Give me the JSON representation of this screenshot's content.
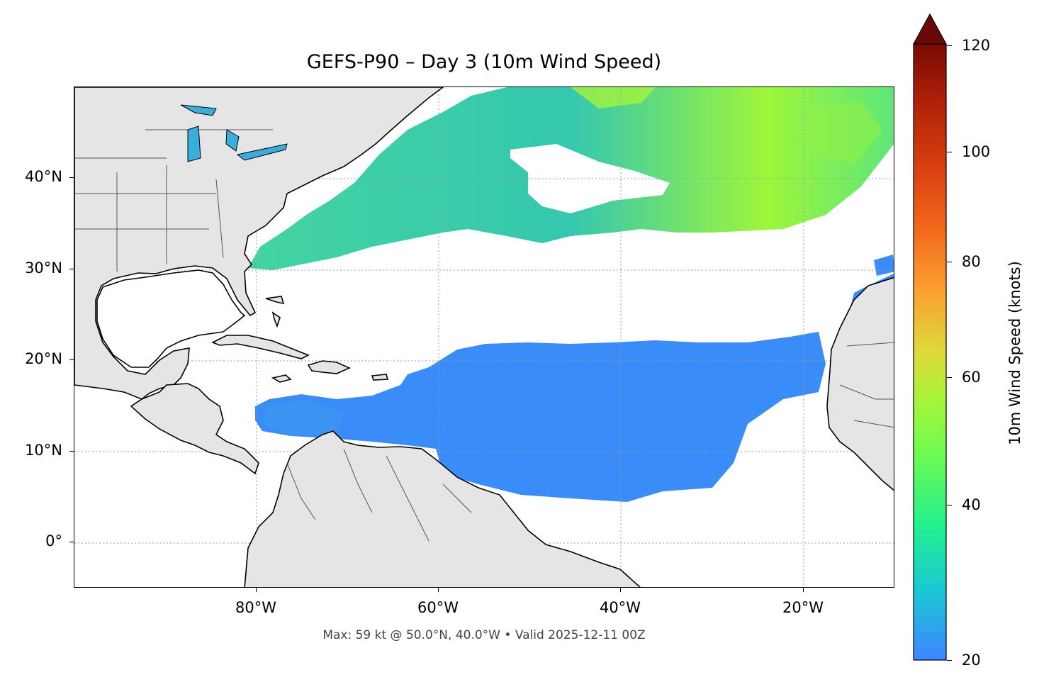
{
  "title": "GEFS-P90 – Day 3 (10m Wind Speed)",
  "footer": "Max: 59 kt @ 50.0°N, 40.0°W • Valid 2025-12-11 00Z",
  "latitude_labels": [
    "40°N",
    "30°N",
    "20°N",
    "10°N",
    "0°"
  ],
  "longitude_labels": [
    "80°W",
    "60°W",
    "40°W",
    "20°W"
  ],
  "colorbar": {
    "label": "10m Wind Speed (knots)",
    "ticks": [
      "120",
      "100",
      "80",
      "60",
      "40",
      "20"
    ],
    "range": [
      20,
      120
    ],
    "extend": "max",
    "colors": [
      "#3f85ff",
      "#1ac7d6",
      "#23f08e",
      "#9ef63a",
      "#dfd93a",
      "#fba032",
      "#f2681b",
      "#c8300a",
      "#951105",
      "#6a0707"
    ]
  },
  "map": {
    "extent_lon": [
      -100,
      -10
    ],
    "extent_lat": [
      -5,
      50
    ],
    "land_color": "#e5e5e5",
    "ocean_color": "#ffffff",
    "gridlines": "dotted"
  },
  "chart_data": {
    "type": "heatmap",
    "title": "GEFS-P90 – Day 3 (10m Wind Speed)",
    "variable": "10m Wind Speed (knots)",
    "color_range": [
      20,
      120
    ],
    "max_value": 59,
    "max_location": {
      "lat": 50.0,
      "lon": -40.0
    },
    "valid_time": "2025-12-11 00Z",
    "xlim": [
      -100,
      -10
    ],
    "ylim": [
      -5,
      50
    ]
  }
}
